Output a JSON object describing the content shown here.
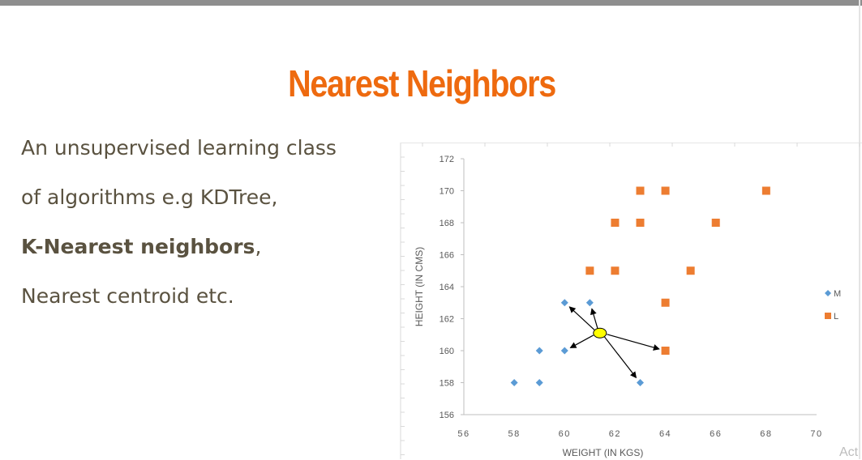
{
  "slide": {
    "title": "Nearest Neighbors",
    "lines": [
      {
        "text": "An unsupervised learning class"
      },
      {
        "text": "of algorithms e.g KDTree,"
      },
      {
        "bold": "K-Nearest neighbors",
        "rest": ","
      },
      {
        "text": "Nearest centroid etc."
      }
    ],
    "corner_text": "Act"
  },
  "colors": {
    "title": "#ee6a0f",
    "text": "#5a5240",
    "series_M": "#5b9bd5",
    "series_L": "#ed7d31",
    "query_point": "#ffff00"
  },
  "chart_data": {
    "type": "scatter",
    "xlabel": "WEIGHT (IN KGS)",
    "ylabel": "HEIGHT (IN CMS)",
    "xlim": [
      56,
      70
    ],
    "ylim": [
      156,
      172
    ],
    "x_ticks": [
      56,
      58,
      60,
      62,
      64,
      66,
      68,
      70
    ],
    "y_ticks": [
      156,
      158,
      160,
      162,
      164,
      166,
      168,
      170,
      172
    ],
    "legend_placement": "right",
    "series": [
      {
        "name": "M",
        "marker": "diamond",
        "color": "#5b9bd5",
        "points": [
          [
            58,
            158
          ],
          [
            59,
            158
          ],
          [
            59,
            160
          ],
          [
            60,
            160
          ],
          [
            60,
            163
          ],
          [
            61,
            163
          ],
          [
            63,
            158
          ]
        ]
      },
      {
        "name": "L",
        "marker": "square",
        "color": "#ed7d31",
        "points": [
          [
            61,
            165
          ],
          [
            62,
            165
          ],
          [
            62,
            168
          ],
          [
            63,
            168
          ],
          [
            63,
            170
          ],
          [
            64,
            170
          ],
          [
            64,
            163
          ],
          [
            64,
            160
          ],
          [
            65,
            165
          ],
          [
            66,
            168
          ],
          [
            68,
            170
          ]
        ]
      }
    ],
    "query_point": [
      61.4,
      161.1
    ],
    "neighbor_arrows": [
      [
        60,
        163
      ],
      [
        61,
        163
      ],
      [
        60,
        160
      ],
      [
        64,
        160
      ],
      [
        63,
        158
      ]
    ]
  }
}
